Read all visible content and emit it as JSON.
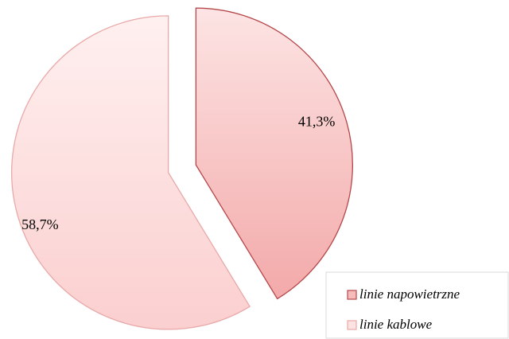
{
  "chart_data": {
    "type": "pie",
    "categories": [
      "linie napowietrzne",
      "linie kablowe"
    ],
    "values": [
      41.3,
      58.7
    ],
    "value_labels": [
      "41,3%",
      "58,7%"
    ],
    "colors": [
      "#f6bcbc",
      "#fde2e2"
    ],
    "stroke_colors": [
      "#b5474a",
      "#e8a9a9"
    ],
    "legend": "bottom-right"
  }
}
